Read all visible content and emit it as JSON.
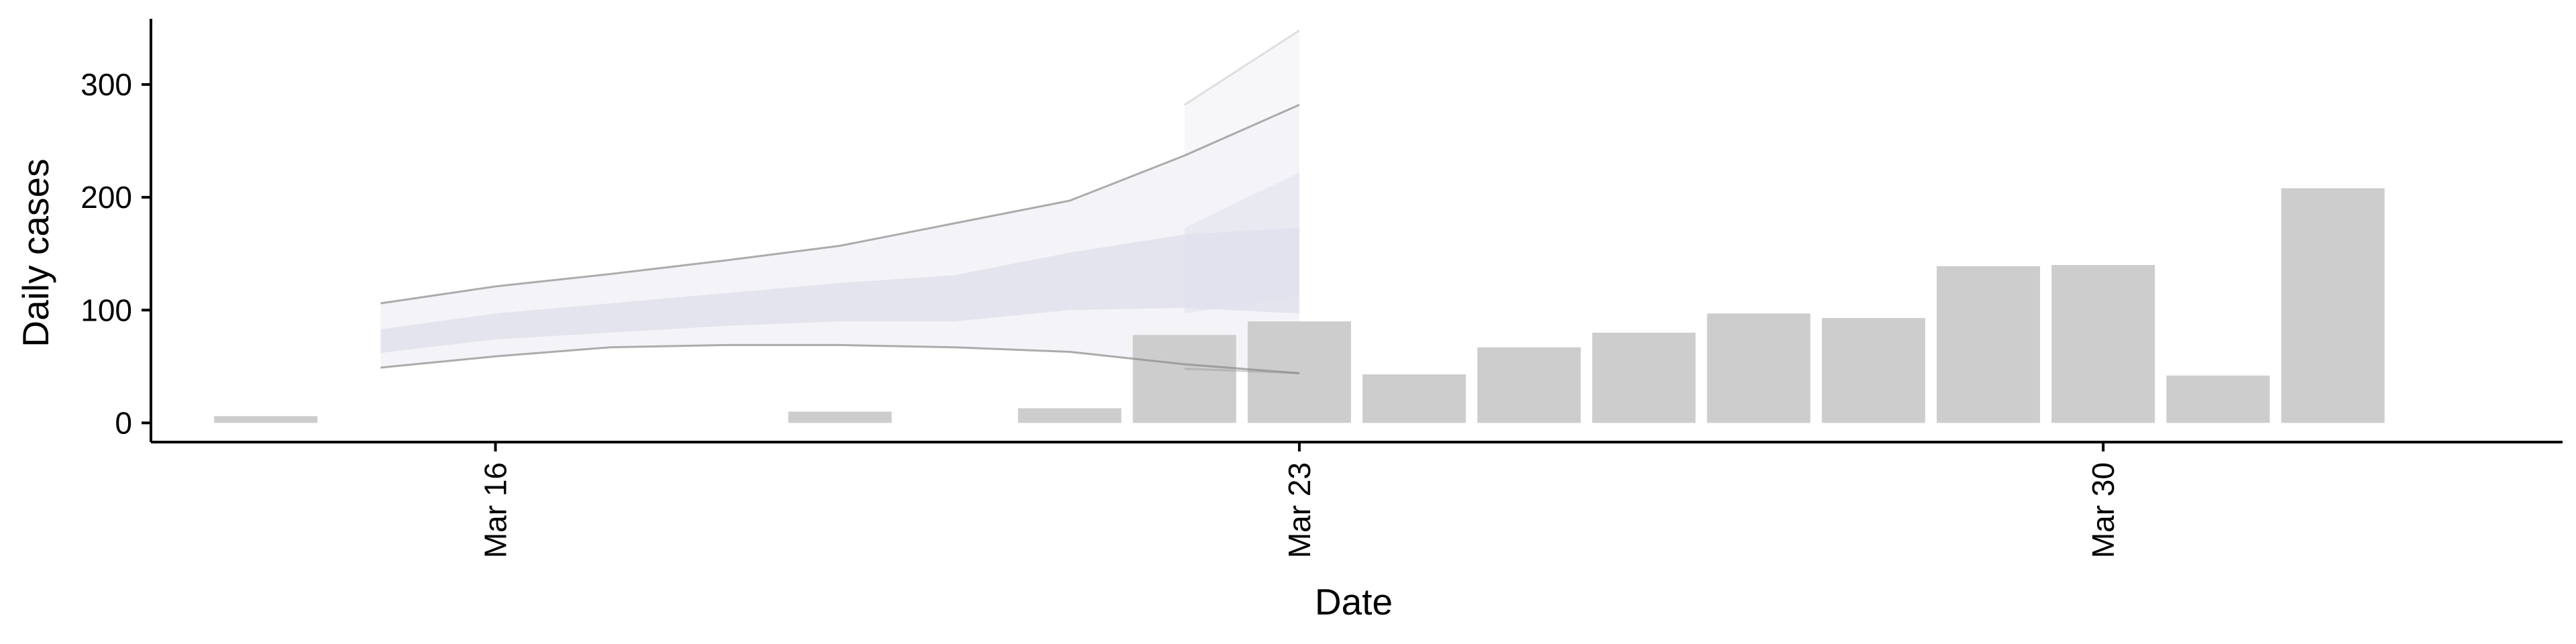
{
  "chart_data": {
    "type": "bar",
    "xlabel": "Date",
    "ylabel": "Daily cases",
    "x_tick_labels": [
      {
        "date": "2020-03-16",
        "label": "Mar 16"
      },
      {
        "date": "2020-03-23",
        "label": "Mar 23"
      },
      {
        "date": "2020-03-30",
        "label": "Mar 30"
      }
    ],
    "y_ticks": [
      0,
      100,
      200,
      300
    ],
    "ylim": [
      -17,
      363
    ],
    "xlim": [
      "2020-03-13",
      "2020-04-03"
    ],
    "grid": false,
    "legend": "none",
    "bars": {
      "dates": [
        "2020-03-14",
        "2020-03-19",
        "2020-03-21",
        "2020-03-22",
        "2020-03-23",
        "2020-03-24",
        "2020-03-25",
        "2020-03-26",
        "2020-03-27",
        "2020-03-28",
        "2020-03-29",
        "2020-03-30",
        "2020-03-31",
        "2020-04-01"
      ],
      "values": [
        6,
        10,
        13,
        78,
        90,
        43,
        67,
        80,
        97,
        93,
        139,
        140,
        42,
        208
      ],
      "color": "#cdcdcd"
    },
    "forecast": {
      "dates": [
        "2020-03-15",
        "2020-03-16",
        "2020-03-17",
        "2020-03-18",
        "2020-03-19",
        "2020-03-20",
        "2020-03-21",
        "2020-03-22",
        "2020-03-23"
      ],
      "lower_90": [
        49,
        59,
        67,
        69,
        69,
        67,
        63,
        52,
        44
      ],
      "upper_90": [
        106,
        121,
        132,
        144,
        157,
        177,
        197,
        237,
        282
      ],
      "lower_50": [
        62,
        74,
        80,
        86,
        90,
        90,
        100,
        102,
        97
      ],
      "upper_50": [
        83,
        97,
        106,
        115,
        124,
        131,
        151,
        167,
        173
      ],
      "outer_color": "#f4f4f8",
      "inner_color": "#dfe1ec",
      "outline_color": "#8a8a8a"
    },
    "forecast_extension": {
      "dates": [
        "2020-03-22",
        "2020-03-23"
      ],
      "upper_90": [
        282,
        348
      ],
      "lower_90": [
        48,
        44
      ],
      "upper_50": [
        173,
        222
      ],
      "lower_50": [
        97,
        113
      ]
    }
  }
}
